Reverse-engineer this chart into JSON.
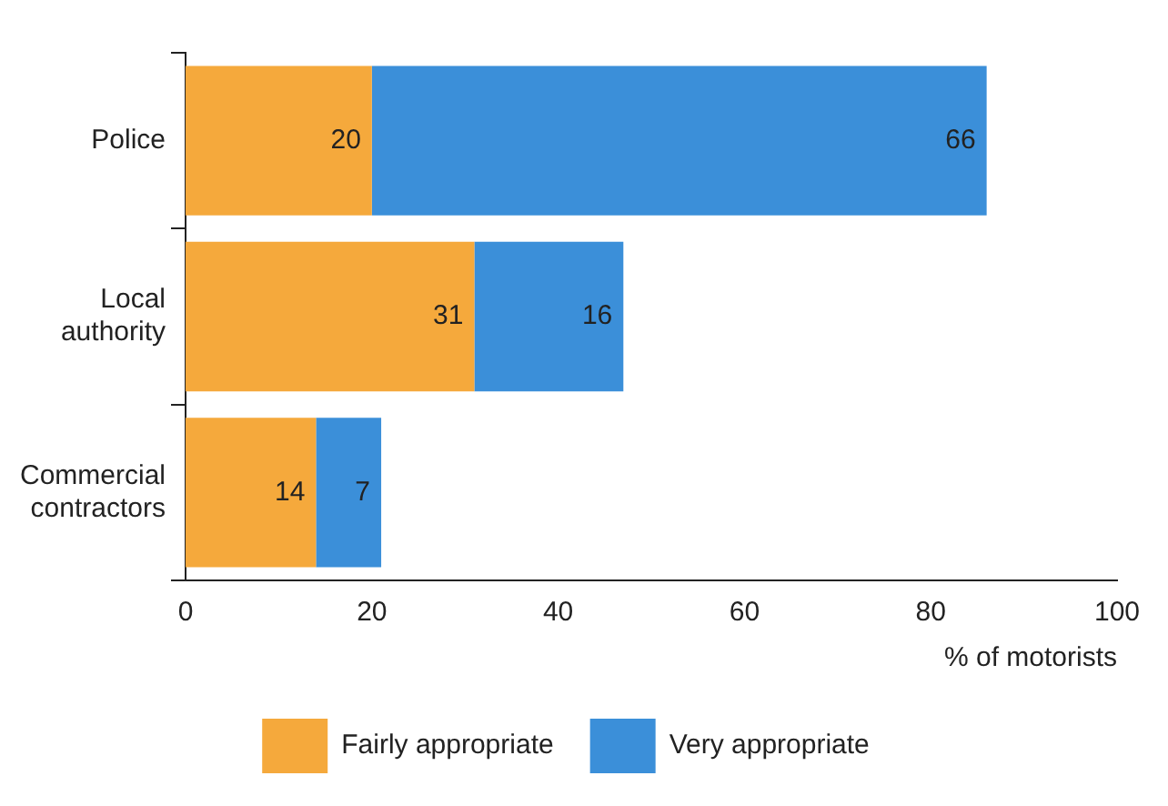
{
  "chart_data": {
    "type": "bar",
    "orientation": "horizontal",
    "stacked": true,
    "categories": [
      "Police",
      "Local authority",
      "Commercial contractors"
    ],
    "series": [
      {
        "name": "Fairly appropriate",
        "color": "#f5a93c",
        "values": [
          20,
          31,
          14
        ]
      },
      {
        "name": "Very appropriate",
        "color": "#3b8fd9",
        "values": [
          66,
          16,
          7
        ]
      }
    ],
    "xlim": [
      0,
      100
    ],
    "xticks": [
      0,
      20,
      40,
      60,
      80,
      100
    ],
    "xlabel": "% of motorists",
    "data_labels": true,
    "legend": "bottom",
    "grid": false
  }
}
